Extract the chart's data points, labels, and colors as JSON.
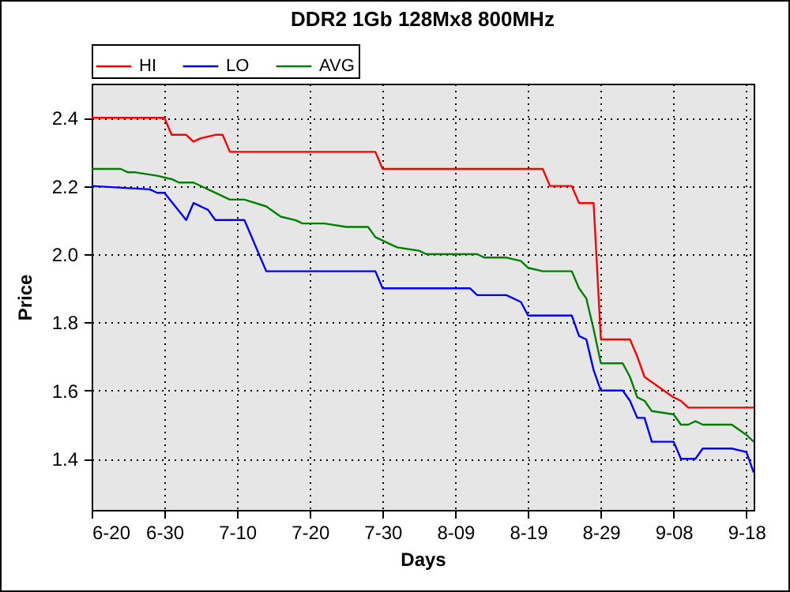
{
  "chart_data": {
    "type": "line",
    "title": "DDR2 1Gb 128Mx8 800MHz",
    "xlabel": "Days",
    "ylabel": "Price",
    "xlim": [
      "--06-20",
      "--09-19"
    ],
    "xticks": [
      {
        "value": "--06-20",
        "label": "6-20"
      },
      {
        "value": "--06-30",
        "label": "6-30"
      },
      {
        "value": "--07-10",
        "label": "7-10"
      },
      {
        "value": "--07-20",
        "label": "7-20"
      },
      {
        "value": "--07-30",
        "label": "7-30"
      },
      {
        "value": "--08-09",
        "label": "8-09"
      },
      {
        "value": "--08-19",
        "label": "8-19"
      },
      {
        "value": "--08-29",
        "label": "8-29"
      },
      {
        "value": "--09-08",
        "label": "9-08"
      },
      {
        "value": "--09-18",
        "label": "9-18"
      }
    ],
    "ylim": [
      1.25,
      2.5
    ],
    "yticks": [
      {
        "value": 1.4,
        "label": "1.4"
      },
      {
        "value": 1.6,
        "label": "1.6"
      },
      {
        "value": 1.8,
        "label": "1.8"
      },
      {
        "value": 2.0,
        "label": "2.0"
      },
      {
        "value": 2.2,
        "label": "2.2"
      },
      {
        "value": 2.4,
        "label": "2.4"
      }
    ],
    "grid": true,
    "legend": "top left",
    "series": [
      {
        "name": "HI",
        "color": "#ff0000",
        "x": [
          "--06-20",
          "--06-30",
          "--07-01",
          "--07-03",
          "--07-04",
          "--07-05",
          "--07-07",
          "--07-08",
          "--07-09",
          "--07-29",
          "--07-30",
          "--08-21",
          "--08-22",
          "--08-25",
          "--08-26",
          "--08-28",
          "--08-29",
          "--09-02",
          "--09-03",
          "--09-04",
          "--09-06",
          "--09-08",
          "--09-09",
          "--09-10",
          "--09-19"
        ],
        "values": [
          2.4,
          2.4,
          2.35,
          2.35,
          2.33,
          2.34,
          2.35,
          2.35,
          2.3,
          2.3,
          2.25,
          2.25,
          2.2,
          2.2,
          2.15,
          2.15,
          1.75,
          1.75,
          1.7,
          1.64,
          1.61,
          1.58,
          1.57,
          1.55,
          1.55
        ]
      },
      {
        "name": "LO",
        "color": "#0000ff",
        "x": [
          "--06-20",
          "--06-28",
          "--06-29",
          "--06-30",
          "--07-03",
          "--07-04",
          "--07-06",
          "--07-07",
          "--07-11",
          "--07-14",
          "--07-29",
          "--07-30",
          "--08-11",
          "--08-12",
          "--08-16",
          "--08-18",
          "--08-19",
          "--08-25",
          "--08-26",
          "--08-27",
          "--08-28",
          "--08-29",
          "--09-01",
          "--09-02",
          "--09-03",
          "--09-04",
          "--09-05",
          "--09-08",
          "--09-09",
          "--09-11",
          "--09-12",
          "--09-16",
          "--09-18",
          "--09-19"
        ],
        "values": [
          2.2,
          2.19,
          2.18,
          2.18,
          2.1,
          2.15,
          2.13,
          2.1,
          2.1,
          1.95,
          1.95,
          1.9,
          1.9,
          1.88,
          1.88,
          1.86,
          1.82,
          1.82,
          1.76,
          1.75,
          1.66,
          1.6,
          1.6,
          1.57,
          1.52,
          1.52,
          1.45,
          1.45,
          1.4,
          1.4,
          1.43,
          1.43,
          1.42,
          1.36
        ]
      },
      {
        "name": "AVG",
        "color": "#008000",
        "x": [
          "--06-20",
          "--06-24",
          "--06-25",
          "--06-26",
          "--06-29",
          "--07-01",
          "--07-02",
          "--07-04",
          "--07-06",
          "--07-09",
          "--07-11",
          "--07-14",
          "--07-16",
          "--07-18",
          "--07-19",
          "--07-22",
          "--07-25",
          "--07-28",
          "--07-29",
          "--07-31",
          "--08-01",
          "--08-04",
          "--08-05",
          "--08-12",
          "--08-13",
          "--08-16",
          "--08-18",
          "--08-19",
          "--08-21",
          "--08-25",
          "--08-26",
          "--08-27",
          "--08-28",
          "--08-29",
          "--09-01",
          "--09-02",
          "--09-03",
          "--09-04",
          "--09-05",
          "--09-08",
          "--09-09",
          "--09-10",
          "--09-11",
          "--09-12",
          "--09-16",
          "--09-18",
          "--09-19"
        ],
        "values": [
          2.25,
          2.25,
          2.24,
          2.24,
          2.23,
          2.22,
          2.21,
          2.21,
          2.19,
          2.16,
          2.16,
          2.14,
          2.11,
          2.1,
          2.09,
          2.09,
          2.08,
          2.08,
          2.05,
          2.03,
          2.02,
          2.01,
          2.0,
          2.0,
          1.99,
          1.99,
          1.98,
          1.96,
          1.95,
          1.95,
          1.9,
          1.87,
          1.78,
          1.68,
          1.68,
          1.64,
          1.58,
          1.57,
          1.54,
          1.53,
          1.5,
          1.5,
          1.51,
          1.5,
          1.5,
          1.47,
          1.45
        ]
      }
    ]
  }
}
